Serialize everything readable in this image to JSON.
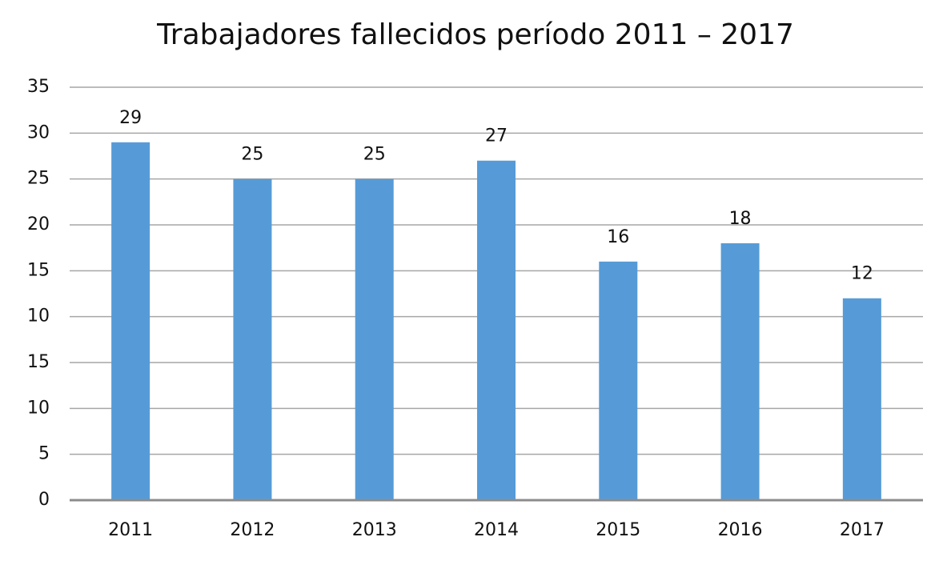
{
  "chart_data": {
    "type": "bar",
    "title": "Trabajadores fallecidos período 2011 – 2017",
    "categories": [
      "2011",
      "2012",
      "2013",
      "2014",
      "2015",
      "2016",
      "2017"
    ],
    "values": [
      29,
      25,
      25,
      27,
      16,
      18,
      12
    ],
    "color": "#569bd7",
    "ylim": [
      -10,
      35
    ],
    "yticks": [
      {
        "value": -10,
        "label": "0"
      },
      {
        "value": -5,
        "label": "5"
      },
      {
        "value": 0,
        "label": "10"
      },
      {
        "value": 5,
        "label": "15"
      },
      10,
      15,
      20,
      25,
      30,
      35
    ],
    "grid": true
  }
}
